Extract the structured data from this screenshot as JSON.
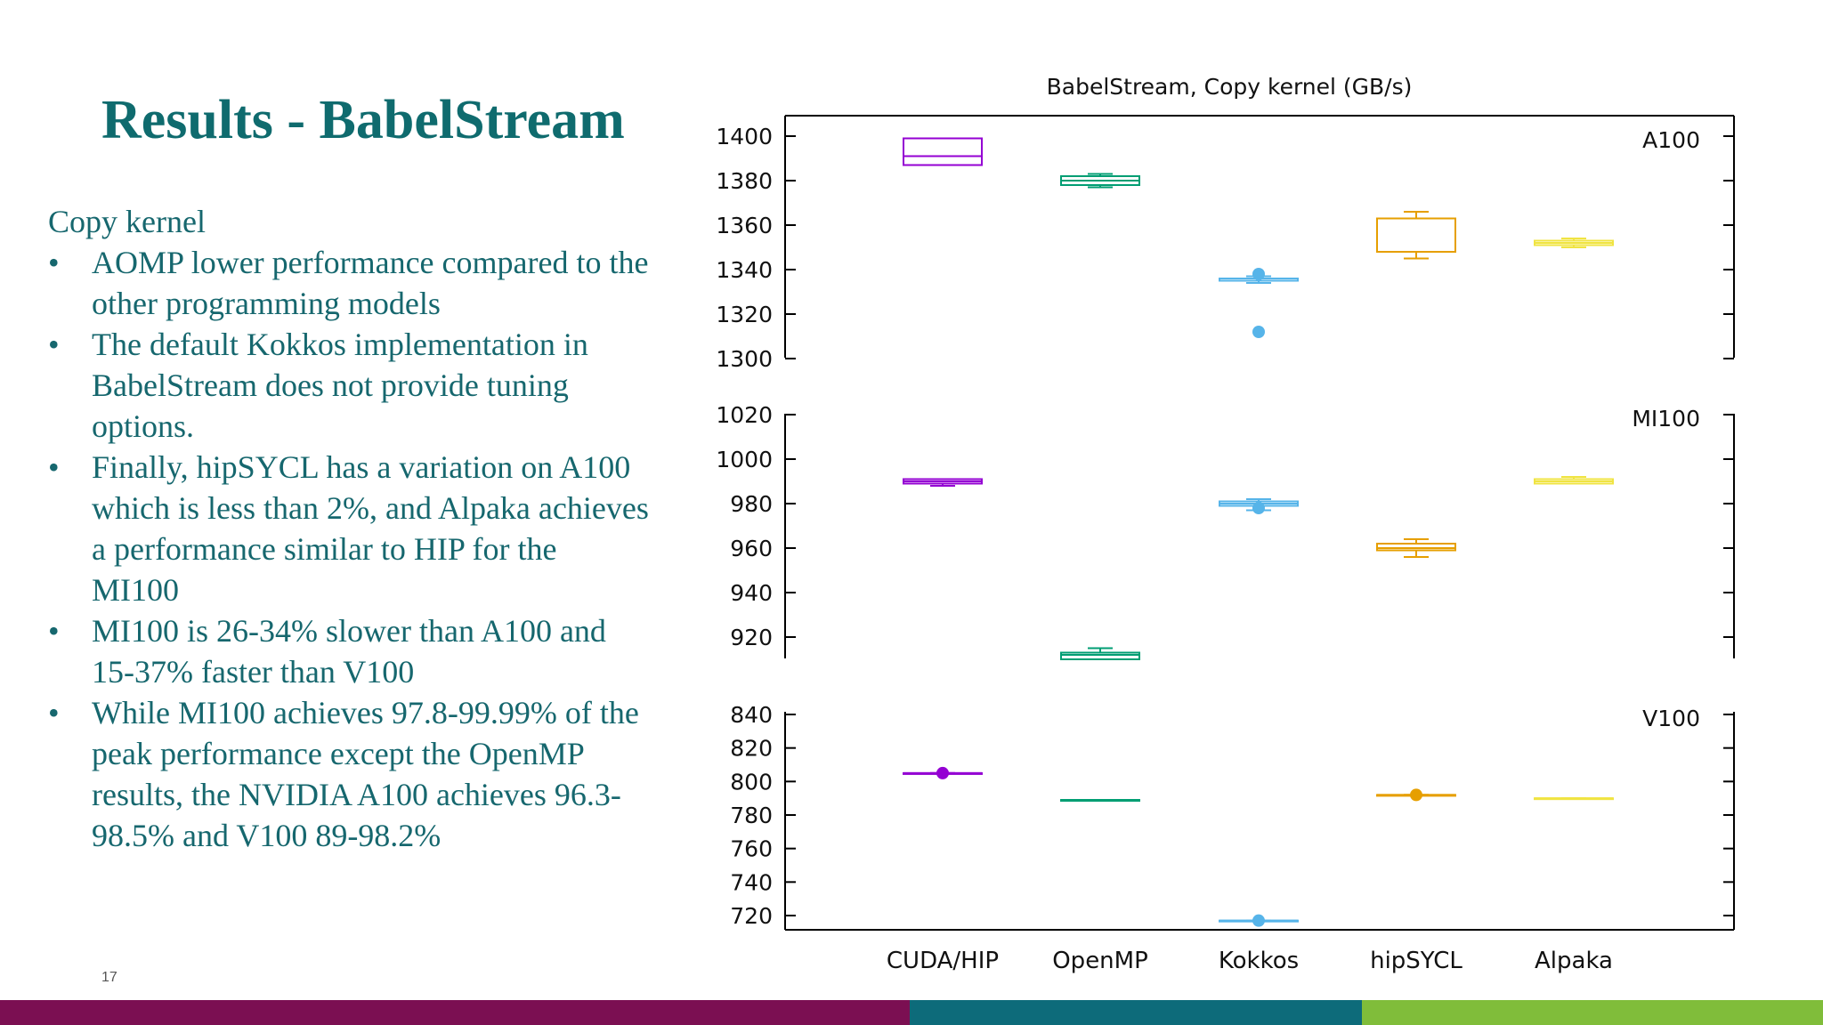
{
  "slide": {
    "title": "Results - BabelStream",
    "page_number": "17",
    "heading": "Copy kernel",
    "bullets": [
      {
        "lines": [
          "AOMP lower performance compared to the",
          "other programming models"
        ]
      },
      {
        "lines": [
          "The default Kokkos implementation in",
          "BabelStream does not provide tuning",
          "options."
        ]
      },
      {
        "lines": [
          "Finally, hipSYCL has a variation on A100",
          "which is less than 2%, and Alpaka achieves",
          "a performance similar to HIP for the",
          "MI100"
        ]
      },
      {
        "lines": [
          "MI100 is 26-34% slower than A100 and",
          "15-37% faster than V100"
        ]
      },
      {
        "lines": [
          "While MI100 achieves 97.8-99.99% of the",
          "peak performance except the OpenMP",
          "results, the NVIDIA A100 achieves 96.3-",
          "98.5% and V100 89-98.2%"
        ]
      }
    ],
    "bullet_glyph": "•",
    "footer_colors": [
      "#7b0f52",
      "#0d6b7a",
      "#80bd3a"
    ]
  },
  "chart_data": {
    "type": "box",
    "title": "BabelStream, Copy kernel (GB/s)",
    "categories": [
      "CUDA/HIP",
      "OpenMP",
      "Kokkos",
      "hipSYCL",
      "Alpaka"
    ],
    "colors": [
      "#9400d3",
      "#009e73",
      "#56b4e9",
      "#e69f00",
      "#f0e442"
    ],
    "panels": [
      {
        "label": "A100",
        "ylim": [
          1300,
          1410
        ],
        "yticks": [
          1300,
          1320,
          1340,
          1360,
          1380,
          1400
        ],
        "boxes": [
          {
            "min": 1387,
            "q1": 1387,
            "median": 1391,
            "q3": 1399,
            "max": 1399,
            "outliers": []
          },
          {
            "min": 1377,
            "q1": 1378,
            "median": 1380,
            "q3": 1382,
            "max": 1383,
            "outliers": []
          },
          {
            "min": 1334,
            "q1": 1335,
            "median": 1335,
            "q3": 1336,
            "max": 1337,
            "outliers": [
              1338,
              1312
            ]
          },
          {
            "min": 1345,
            "q1": 1348,
            "median": 1363,
            "q3": 1363,
            "max": 1366,
            "outliers": []
          },
          {
            "min": 1350,
            "q1": 1351,
            "median": 1352,
            "q3": 1353,
            "max": 1354,
            "outliers": []
          }
        ]
      },
      {
        "label": "MI100",
        "ylim": [
          910,
          1020
        ],
        "yticks": [
          920,
          940,
          960,
          980,
          1000,
          1020
        ],
        "boxes": [
          {
            "min": 988,
            "q1": 989,
            "median": 990,
            "q3": 991,
            "max": 991,
            "outliers": []
          },
          {
            "min": 910,
            "q1": 910,
            "median": 912,
            "q3": 913,
            "max": 915,
            "outliers": []
          },
          {
            "min": 977,
            "q1": 979,
            "median": 980,
            "q3": 981,
            "max": 982,
            "outliers": [
              978
            ]
          },
          {
            "min": 956,
            "q1": 959,
            "median": 960,
            "q3": 962,
            "max": 964,
            "outliers": []
          },
          {
            "min": 989,
            "q1": 989,
            "median": 990,
            "q3": 991,
            "max": 992,
            "outliers": []
          }
        ]
      },
      {
        "label": "V100",
        "ylim": [
          710,
          840
        ],
        "yticks": [
          720,
          740,
          760,
          780,
          800,
          820,
          840
        ],
        "boxes": [
          {
            "min": 805,
            "q1": 805,
            "median": 805,
            "q3": 805,
            "max": 805,
            "outliers": [
              805
            ]
          },
          {
            "min": 789,
            "q1": 789,
            "median": 789,
            "q3": 789,
            "max": 789,
            "outliers": []
          },
          {
            "min": 717,
            "q1": 717,
            "median": 717,
            "q3": 717,
            "max": 717,
            "outliers": [
              717
            ]
          },
          {
            "min": 792,
            "q1": 792,
            "median": 792,
            "q3": 792,
            "max": 792,
            "outliers": [
              792
            ]
          },
          {
            "min": 790,
            "q1": 790,
            "median": 790,
            "q3": 790,
            "max": 790,
            "outliers": []
          }
        ]
      }
    ]
  }
}
